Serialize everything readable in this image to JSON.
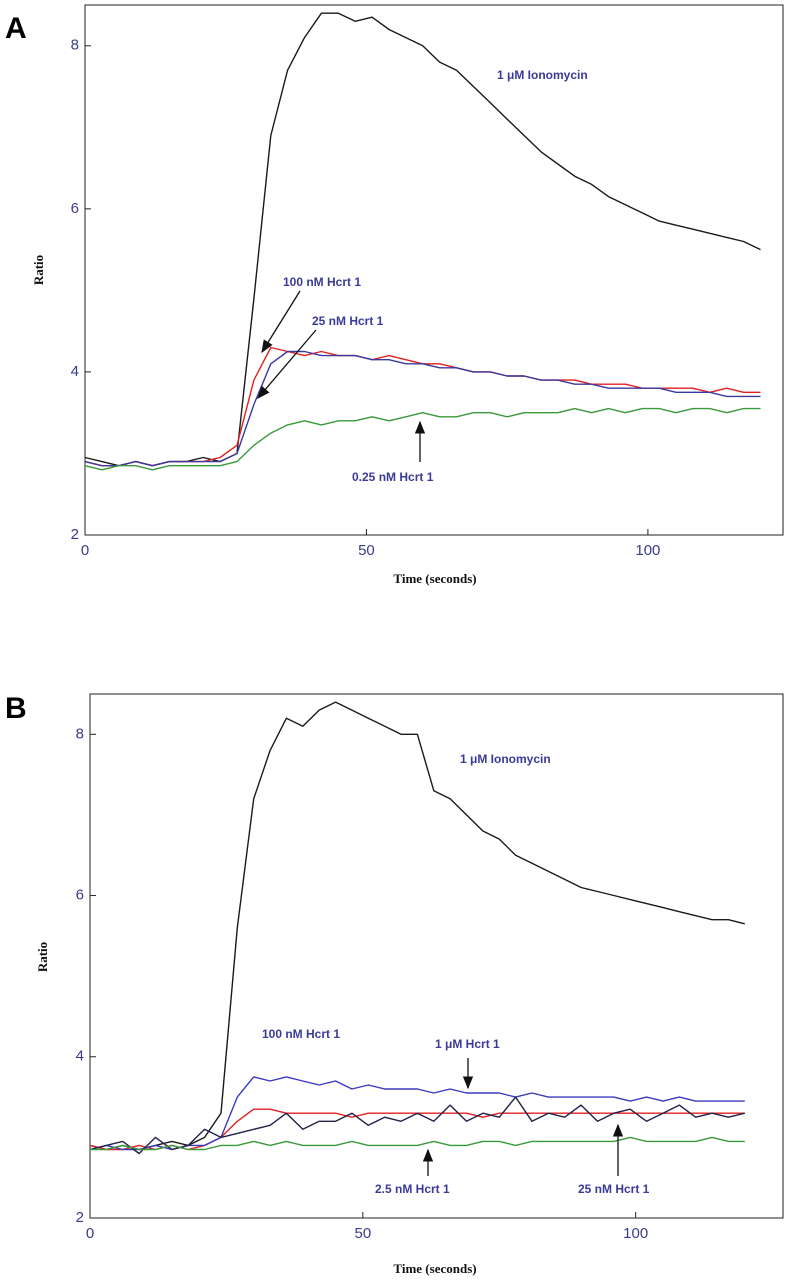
{
  "chart_data": [
    {
      "type": "line",
      "label": "A",
      "ylabel": "Ratio",
      "xlabel": "Time (seconds)",
      "xlim": [
        0,
        124
      ],
      "ylim": [
        2,
        8.5
      ],
      "xticks": [
        0,
        50,
        100
      ],
      "yticks": [
        2,
        4,
        6,
        8
      ],
      "x": [
        0,
        3,
        6,
        9,
        12,
        15,
        18,
        21,
        24,
        27,
        30,
        33,
        36,
        39,
        42,
        45,
        48,
        51,
        54,
        57,
        60,
        63,
        66,
        69,
        72,
        75,
        78,
        81,
        84,
        87,
        90,
        93,
        96,
        99,
        102,
        105,
        108,
        111,
        114,
        117,
        120
      ],
      "series": [
        {
          "name": "1 μM Ionomycin",
          "color": "#1a1a1a",
          "values": [
            2.95,
            2.9,
            2.85,
            2.9,
            2.85,
            2.9,
            2.9,
            2.95,
            2.9,
            3.0,
            4.9,
            6.9,
            7.7,
            8.1,
            8.4,
            8.4,
            8.3,
            8.35,
            8.2,
            8.1,
            8.0,
            7.8,
            7.7,
            7.5,
            7.3,
            7.1,
            6.9,
            6.7,
            6.55,
            6.4,
            6.3,
            6.15,
            6.05,
            5.95,
            5.85,
            5.8,
            5.75,
            5.7,
            5.65,
            5.6,
            5.5
          ]
        },
        {
          "name": "100 nM Hcrt 1",
          "color": "#e02020",
          "values": [
            2.9,
            2.85,
            2.85,
            2.9,
            2.85,
            2.9,
            2.9,
            2.9,
            2.95,
            3.1,
            3.9,
            4.3,
            4.25,
            4.2,
            4.25,
            4.2,
            4.2,
            4.15,
            4.2,
            4.15,
            4.1,
            4.1,
            4.05,
            4.0,
            4.0,
            3.95,
            3.95,
            3.9,
            3.9,
            3.9,
            3.85,
            3.85,
            3.85,
            3.8,
            3.8,
            3.8,
            3.8,
            3.75,
            3.8,
            3.75,
            3.75
          ]
        },
        {
          "name": "25 nM Hcrt 1",
          "color": "#3a3aa0",
          "values": [
            2.9,
            2.85,
            2.85,
            2.9,
            2.85,
            2.9,
            2.9,
            2.9,
            2.9,
            3.0,
            3.6,
            4.1,
            4.25,
            4.25,
            4.2,
            4.2,
            4.2,
            4.15,
            4.15,
            4.1,
            4.1,
            4.05,
            4.05,
            4.0,
            4.0,
            3.95,
            3.95,
            3.9,
            3.9,
            3.85,
            3.85,
            3.8,
            3.8,
            3.8,
            3.8,
            3.75,
            3.75,
            3.75,
            3.7,
            3.7,
            3.7
          ]
        },
        {
          "name": "0.25 nM Hcrt 1",
          "color": "#3a9a3a",
          "values": [
            2.85,
            2.8,
            2.85,
            2.85,
            2.8,
            2.85,
            2.85,
            2.85,
            2.85,
            2.9,
            3.1,
            3.25,
            3.35,
            3.4,
            3.35,
            3.4,
            3.4,
            3.45,
            3.4,
            3.45,
            3.5,
            3.45,
            3.45,
            3.5,
            3.5,
            3.45,
            3.5,
            3.5,
            3.5,
            3.55,
            3.5,
            3.55,
            3.5,
            3.55,
            3.55,
            3.5,
            3.55,
            3.55,
            3.5,
            3.55,
            3.55
          ]
        }
      ]
    },
    {
      "type": "line",
      "label": "B",
      "ylabel": "Ratio",
      "xlabel": "Time (seconds)",
      "xlim": [
        0,
        127
      ],
      "ylim": [
        2,
        8.5
      ],
      "xticks": [
        0,
        50,
        100
      ],
      "yticks": [
        2,
        4,
        6,
        8
      ],
      "x": [
        0,
        3,
        6,
        9,
        12,
        15,
        18,
        21,
        24,
        27,
        30,
        33,
        36,
        39,
        42,
        45,
        48,
        51,
        54,
        57,
        60,
        63,
        66,
        69,
        72,
        75,
        78,
        81,
        84,
        87,
        90,
        93,
        96,
        99,
        102,
        105,
        108,
        111,
        114,
        117,
        120
      ],
      "series": [
        {
          "name": "1 μM Ionomycin",
          "color": "#1a1a1a",
          "values": [
            2.9,
            2.85,
            2.9,
            2.85,
            2.9,
            2.95,
            2.9,
            3.0,
            3.3,
            5.6,
            7.2,
            7.8,
            8.2,
            8.1,
            8.3,
            8.4,
            8.3,
            8.2,
            8.1,
            8.0,
            8.0,
            7.3,
            7.2,
            7.0,
            6.8,
            6.7,
            6.5,
            6.4,
            6.3,
            6.2,
            6.1,
            6.05,
            6.0,
            5.95,
            5.9,
            5.85,
            5.8,
            5.75,
            5.7,
            5.7,
            5.65
          ]
        },
        {
          "name": "100 nM Hcrt 1",
          "color": "#e02020",
          "values": [
            2.9,
            2.85,
            2.85,
            2.9,
            2.85,
            2.9,
            2.85,
            2.9,
            3.0,
            3.2,
            3.35,
            3.35,
            3.3,
            3.3,
            3.3,
            3.3,
            3.25,
            3.3,
            3.3,
            3.3,
            3.3,
            3.3,
            3.3,
            3.3,
            3.25,
            3.3,
            3.3,
            3.3,
            3.3,
            3.3,
            3.3,
            3.3,
            3.3,
            3.3,
            3.3,
            3.3,
            3.3,
            3.3,
            3.3,
            3.3,
            3.3
          ]
        },
        {
          "name": "1 μM Hcrt 1",
          "color": "#3a3ac0",
          "values": [
            2.85,
            2.9,
            2.85,
            2.85,
            2.9,
            2.85,
            2.9,
            2.9,
            3.0,
            3.5,
            3.75,
            3.7,
            3.75,
            3.7,
            3.65,
            3.7,
            3.6,
            3.65,
            3.6,
            3.6,
            3.6,
            3.55,
            3.6,
            3.55,
            3.55,
            3.55,
            3.5,
            3.55,
            3.5,
            3.5,
            3.5,
            3.5,
            3.5,
            3.45,
            3.5,
            3.45,
            3.5,
            3.45,
            3.45,
            3.45,
            3.45
          ]
        },
        {
          "name": "25 nM Hcrt 1",
          "color": "#22224a",
          "values": [
            2.85,
            2.9,
            2.95,
            2.8,
            3.0,
            2.85,
            2.9,
            3.1,
            3.0,
            3.05,
            3.1,
            3.15,
            3.3,
            3.1,
            3.2,
            3.2,
            3.3,
            3.15,
            3.25,
            3.2,
            3.3,
            3.2,
            3.4,
            3.2,
            3.3,
            3.25,
            3.5,
            3.2,
            3.3,
            3.25,
            3.4,
            3.2,
            3.3,
            3.35,
            3.2,
            3.3,
            3.4,
            3.25,
            3.3,
            3.25,
            3.3
          ]
        },
        {
          "name": "2.5 nM Hcrt 1",
          "color": "#3a9a3a",
          "values": [
            2.85,
            2.85,
            2.9,
            2.85,
            2.85,
            2.9,
            2.85,
            2.85,
            2.9,
            2.9,
            2.95,
            2.9,
            2.95,
            2.9,
            2.9,
            2.9,
            2.95,
            2.9,
            2.9,
            2.9,
            2.9,
            2.95,
            2.9,
            2.9,
            2.95,
            2.95,
            2.9,
            2.95,
            2.95,
            2.95,
            2.95,
            2.95,
            2.95,
            3.0,
            2.95,
            2.95,
            2.95,
            2.95,
            3.0,
            2.95,
            2.95
          ]
        }
      ]
    }
  ]
}
